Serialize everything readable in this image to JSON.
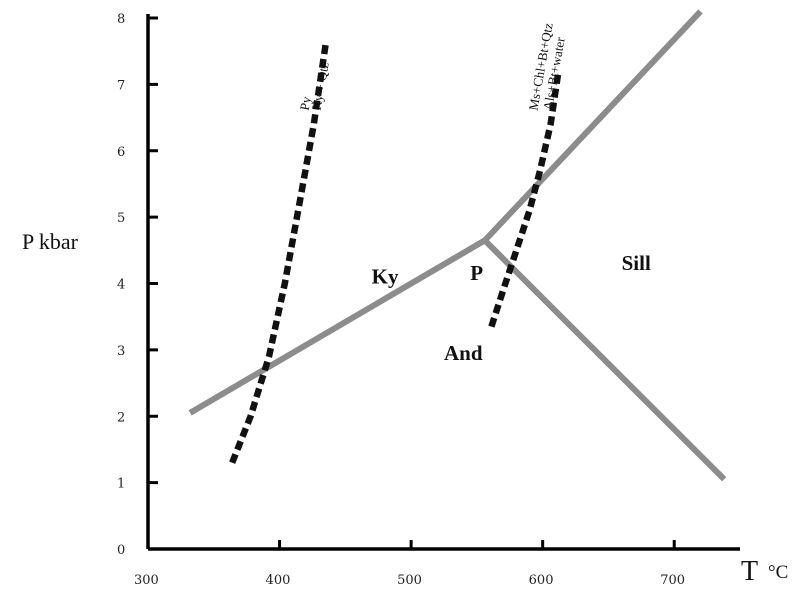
{
  "chart_data": {
    "type": "line",
    "xlabel": "T",
    "xlabel_unit": "°C",
    "ylabel": "P kbar",
    "xlim": [
      300,
      750
    ],
    "ylim": [
      0,
      8
    ],
    "x_ticks": [
      300,
      400,
      500,
      600,
      700
    ],
    "y_ticks": [
      0,
      1,
      2,
      3,
      4,
      5,
      6,
      7,
      8
    ],
    "grid": false,
    "colors": {
      "phase_boundary": "#8c8c8c",
      "reaction_curve": "#111111",
      "axis": "#000000"
    },
    "series": [
      {
        "style": "solid",
        "x": [
          332,
          556
        ],
        "y": [
          2.05,
          4.65
        ]
      },
      {
        "style": "solid",
        "x": [
          556,
          720
        ],
        "y": [
          4.65,
          8.1
        ]
      },
      {
        "style": "solid",
        "x": [
          556,
          738
        ],
        "y": [
          4.65,
          1.05
        ]
      },
      {
        "style": "dashed",
        "x": [
          364,
          378,
          392,
          404,
          416,
          426,
          435
        ],
        "y": [
          1.3,
          2.0,
          2.9,
          4.0,
          5.3,
          6.4,
          7.6
        ]
      },
      {
        "style": "dashed",
        "x": [
          561,
          570,
          580,
          590,
          598,
          606,
          612
        ],
        "y": [
          3.35,
          3.9,
          4.5,
          5.1,
          5.7,
          6.4,
          7.2
        ]
      }
    ],
    "annotations": [
      {
        "text": "Ky",
        "x": 470,
        "y": 4.0
      },
      {
        "text": "P",
        "x": 545,
        "y": 4.05
      },
      {
        "text": "Sill",
        "x": 660,
        "y": 4.2
      },
      {
        "text": "And",
        "x": 525,
        "y": 2.85
      },
      {
        "text": "Py",
        "x": 422,
        "y": 6.6,
        "rotate": -80
      },
      {
        "text": "Ky + Qtz",
        "x": 431,
        "y": 6.6,
        "rotate": -80
      },
      {
        "text": "Ms+Chl+Bt+Qtz",
        "x": 596,
        "y": 6.6,
        "rotate": -80
      },
      {
        "text": "Als+Bt+water",
        "x": 607,
        "y": 6.6,
        "rotate": -80
      }
    ]
  }
}
